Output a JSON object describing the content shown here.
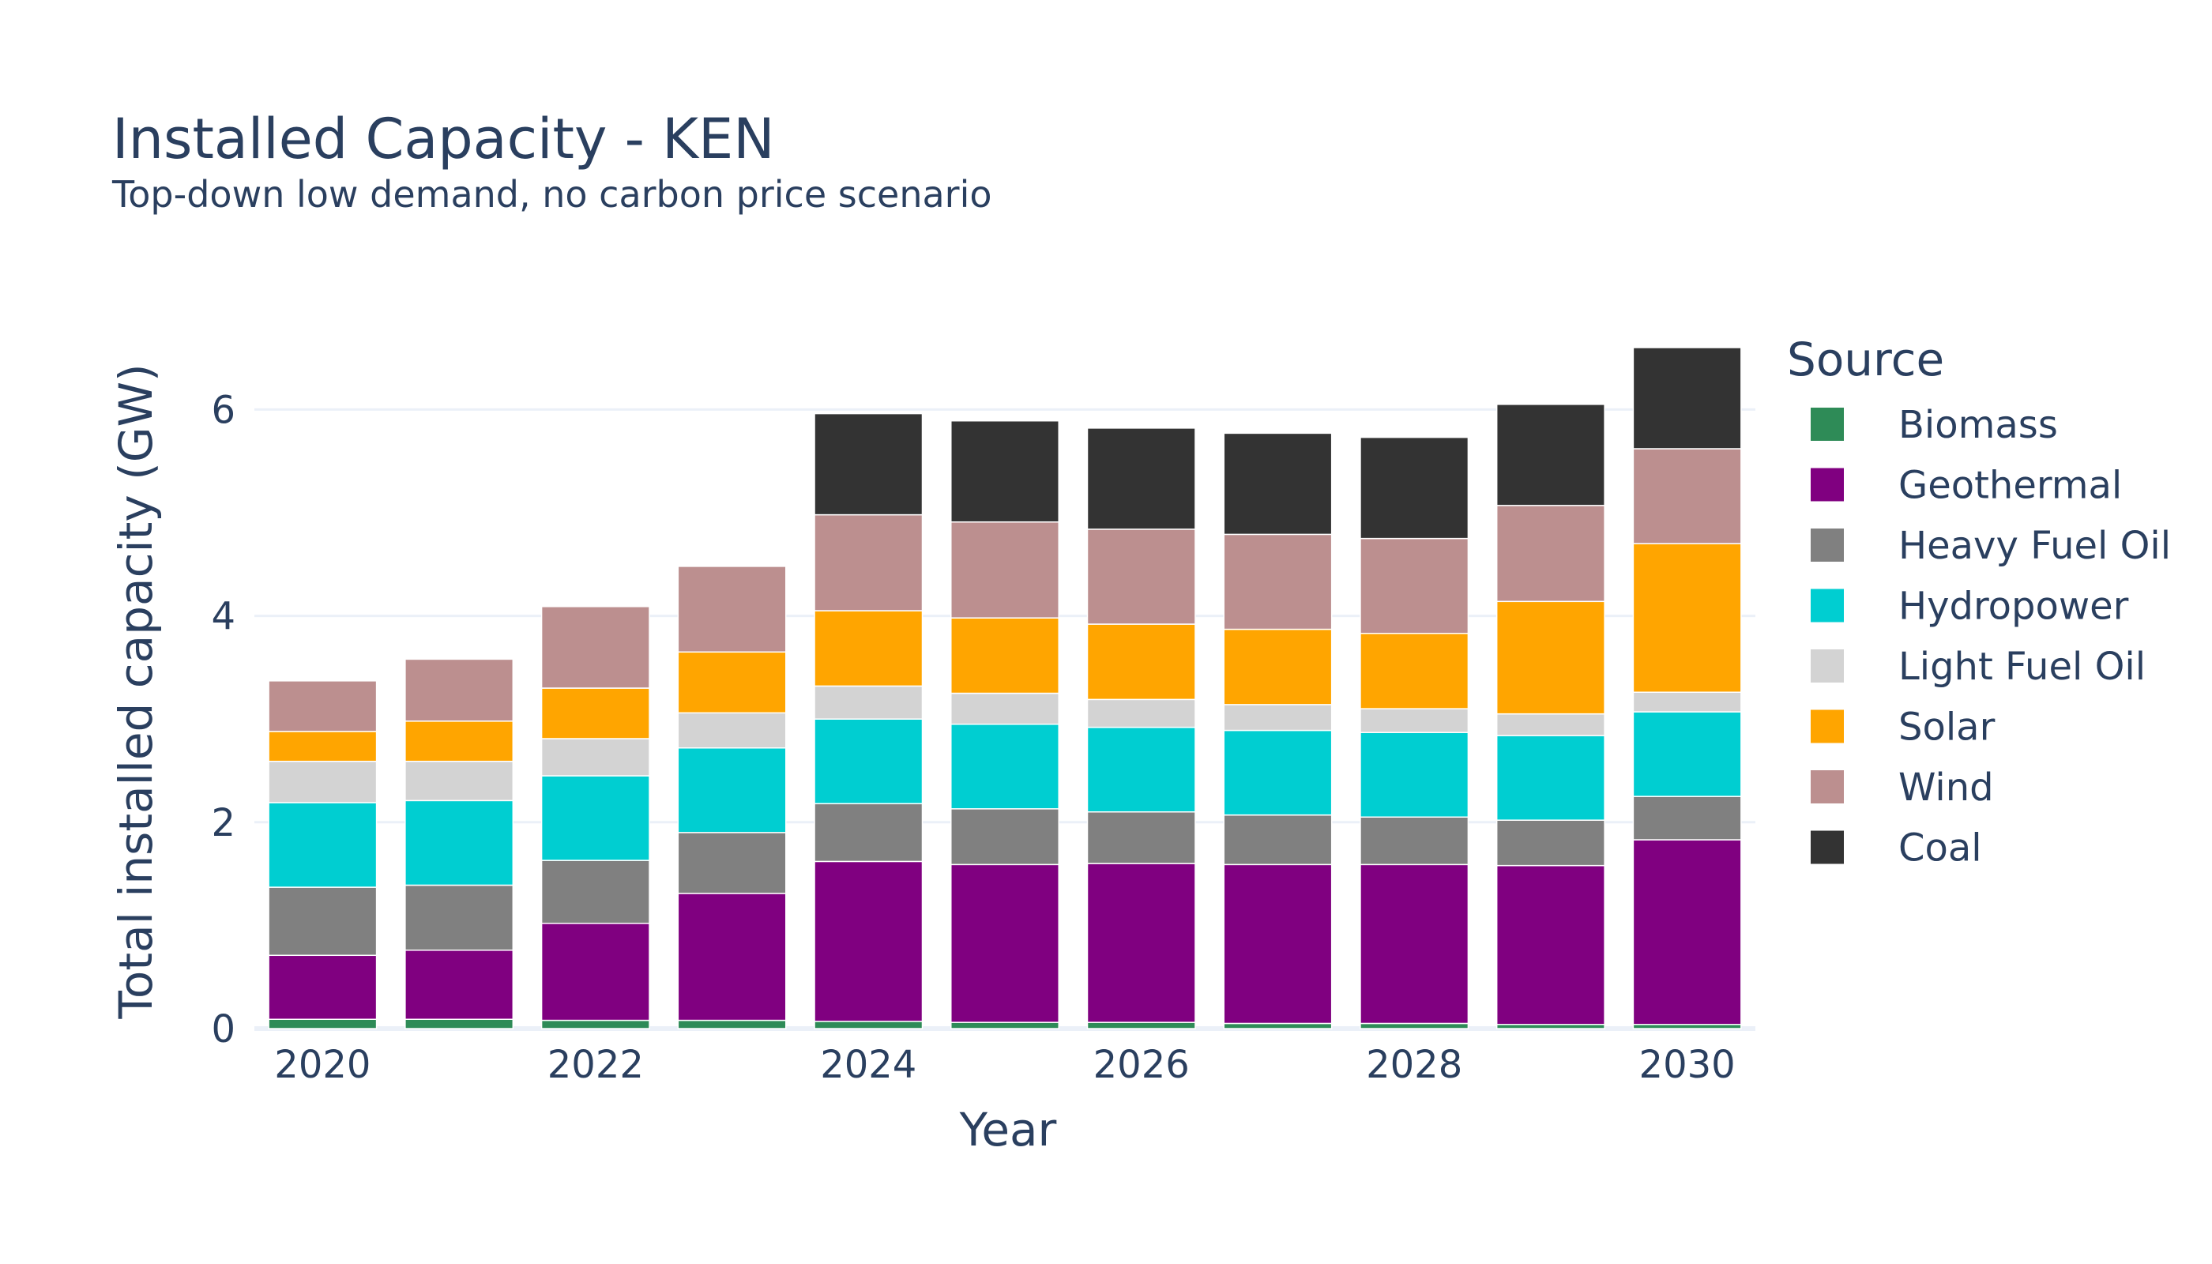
{
  "chart_data": {
    "type": "bar",
    "stacked": true,
    "title": "Installed Capacity - KEN",
    "subtitle": "Top-down low demand, no carbon price scenario",
    "xlabel": "Year",
    "ylabel": "Total installed capacity (GW)",
    "ylim": [
      0,
      6.6
    ],
    "yticks": [
      0,
      2,
      4,
      6
    ],
    "xticks": [
      2020,
      2022,
      2024,
      2026,
      2028,
      2030
    ],
    "categories": [
      2020,
      2021,
      2022,
      2023,
      2024,
      2025,
      2026,
      2027,
      2028,
      2029,
      2030
    ],
    "grid": true,
    "legend": {
      "title": "Source",
      "placement": "right"
    },
    "series": [
      {
        "name": "Biomass",
        "color": "#2e8b57",
        "values": [
          0.09,
          0.09,
          0.08,
          0.08,
          0.07,
          0.06,
          0.06,
          0.05,
          0.05,
          0.04,
          0.04
        ]
      },
      {
        "name": "Geothermal",
        "color": "#800080",
        "values": [
          0.62,
          0.67,
          0.94,
          1.23,
          1.55,
          1.53,
          1.54,
          1.54,
          1.54,
          1.54,
          1.79
        ]
      },
      {
        "name": "Heavy Fuel Oil",
        "color": "#808080",
        "values": [
          0.66,
          0.63,
          0.61,
          0.59,
          0.56,
          0.54,
          0.5,
          0.48,
          0.46,
          0.44,
          0.42
        ]
      },
      {
        "name": "Hydropower",
        "color": "#00ced1",
        "values": [
          0.82,
          0.82,
          0.82,
          0.82,
          0.82,
          0.82,
          0.82,
          0.82,
          0.82,
          0.82,
          0.82
        ]
      },
      {
        "name": "Light Fuel Oil",
        "color": "#d3d3d3",
        "values": [
          0.4,
          0.38,
          0.36,
          0.34,
          0.32,
          0.3,
          0.27,
          0.25,
          0.23,
          0.21,
          0.19
        ]
      },
      {
        "name": "Solar",
        "color": "#ffa500",
        "values": [
          0.29,
          0.39,
          0.49,
          0.59,
          0.73,
          0.73,
          0.73,
          0.73,
          0.73,
          1.09,
          1.44
        ]
      },
      {
        "name": "Wind",
        "color": "#bc8f8f",
        "values": [
          0.49,
          0.6,
          0.79,
          0.83,
          0.93,
          0.93,
          0.92,
          0.92,
          0.92,
          0.93,
          0.92
        ]
      },
      {
        "name": "Coal",
        "color": "#333333",
        "values": [
          0,
          0,
          0,
          0,
          0.98,
          0.98,
          0.98,
          0.98,
          0.98,
          0.98,
          0.98
        ]
      }
    ]
  }
}
